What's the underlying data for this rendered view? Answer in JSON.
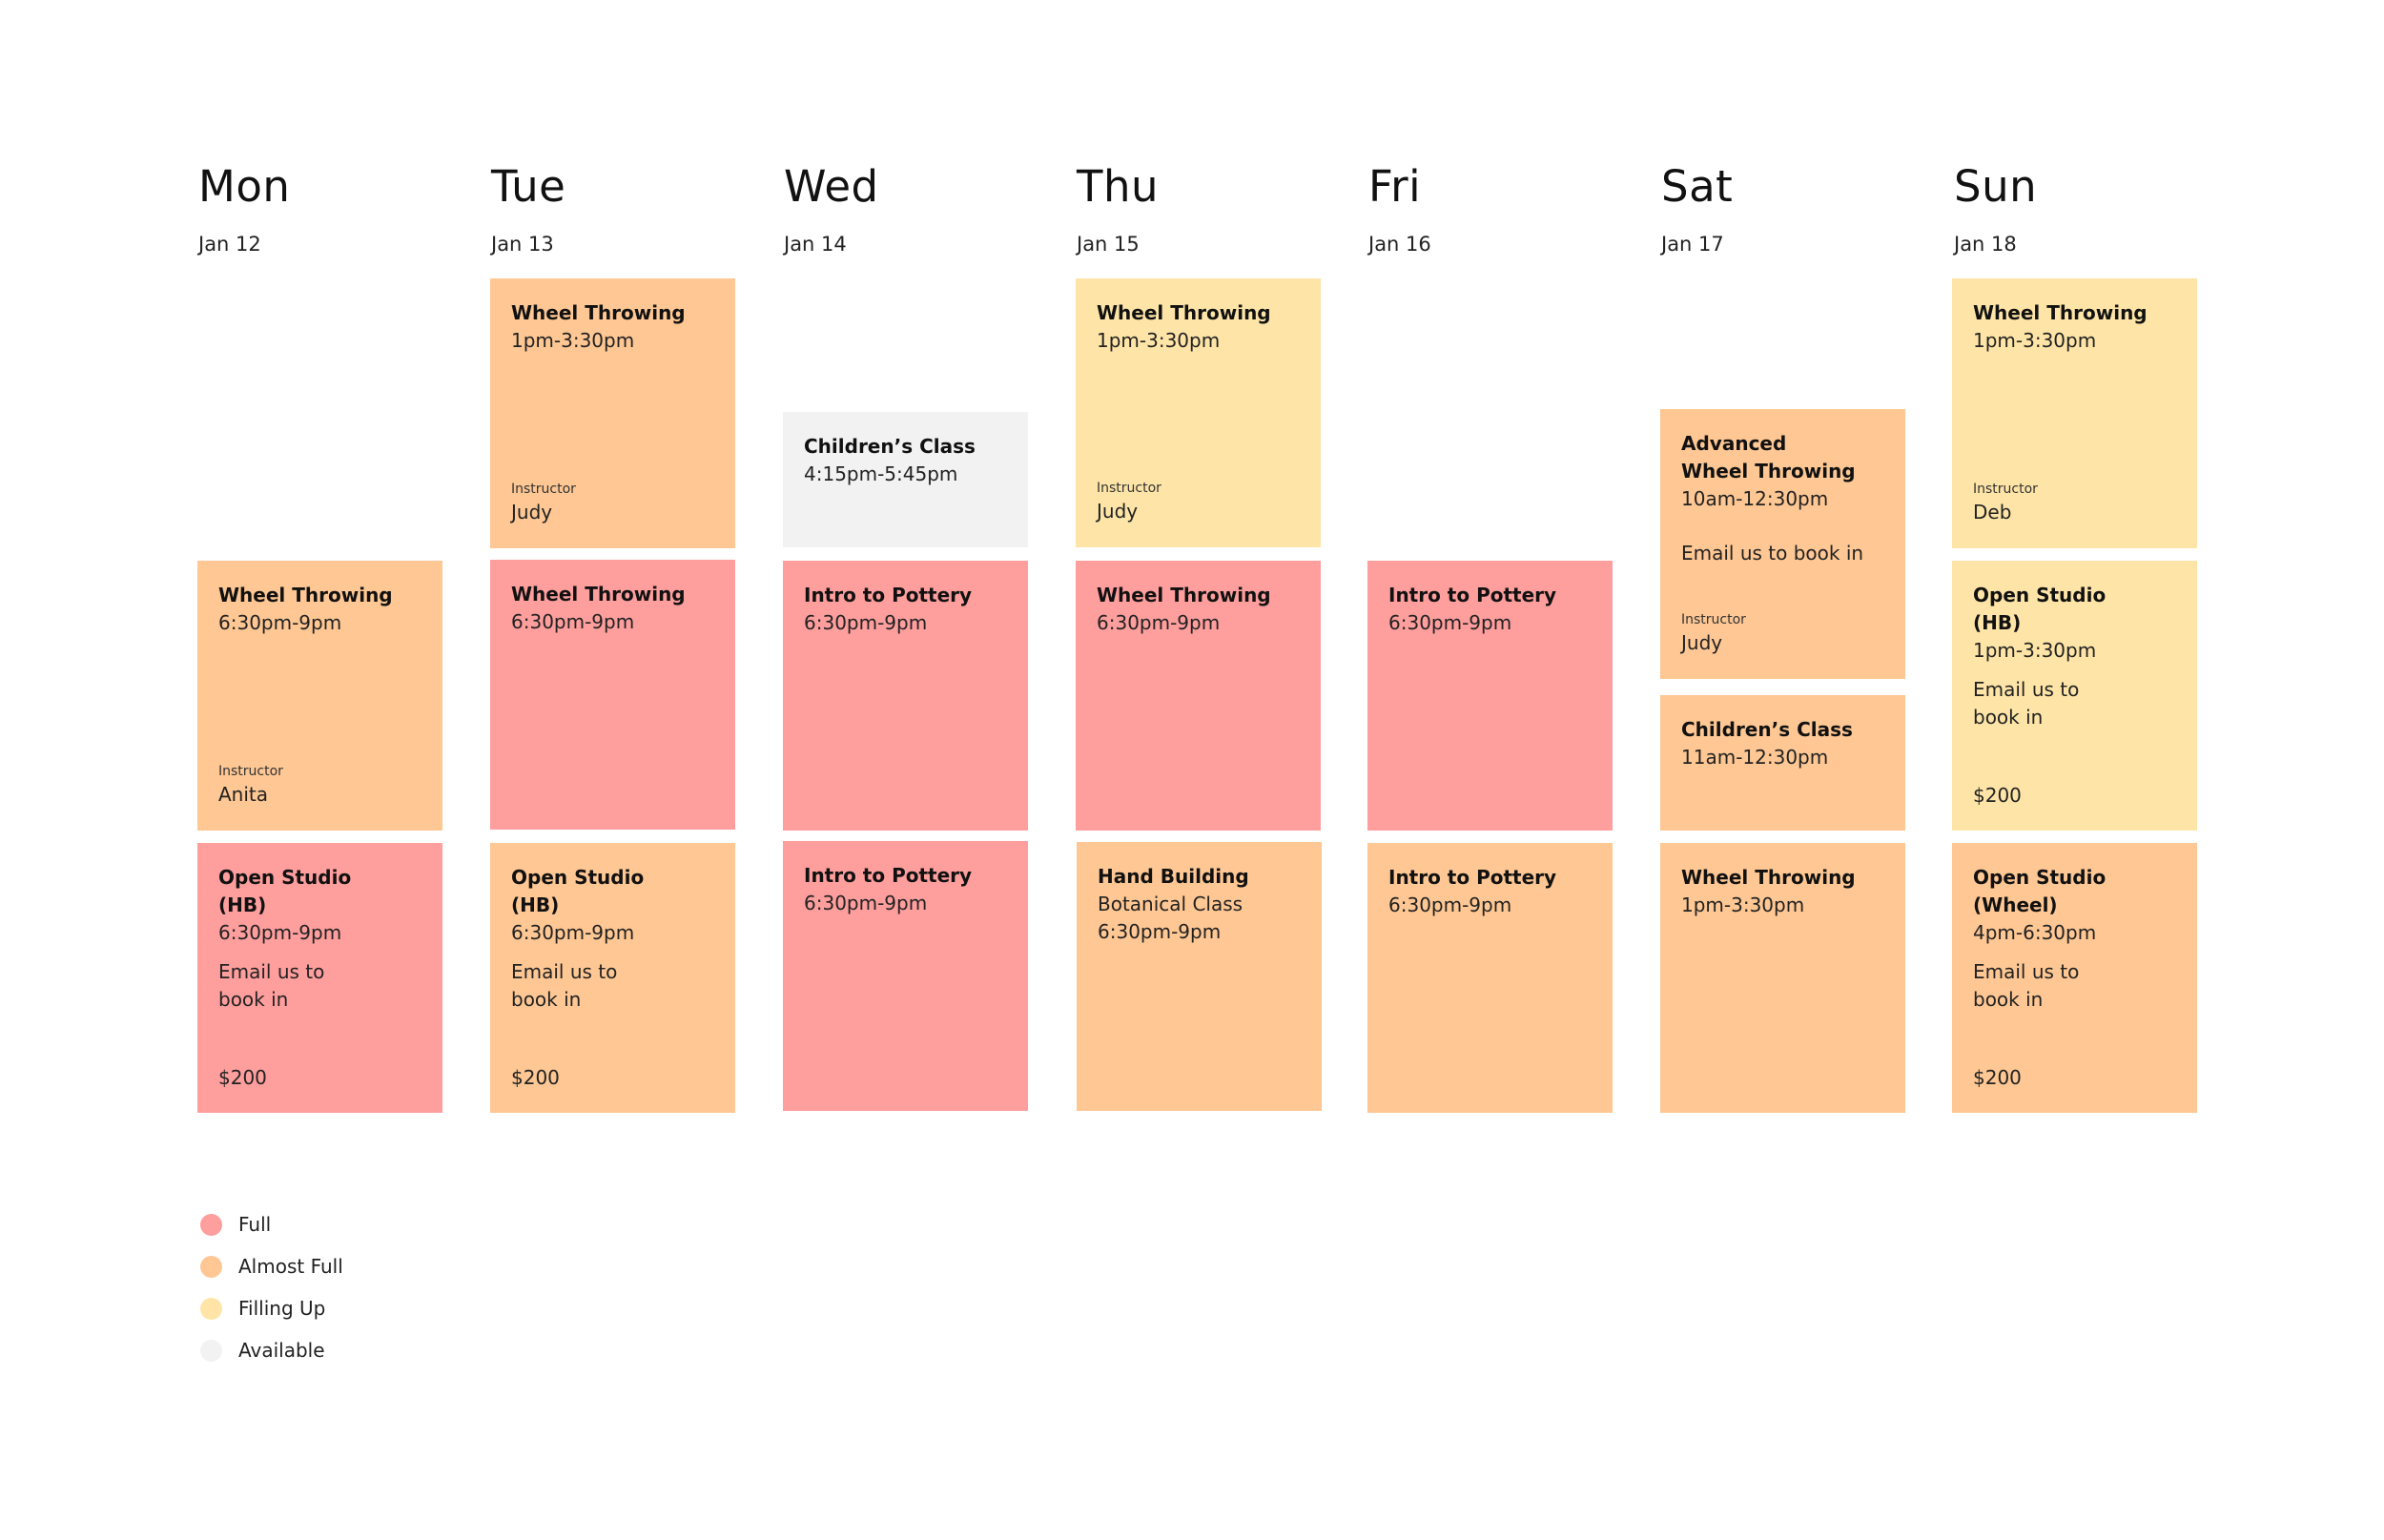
{
  "colors": {
    "full": "#FE9E9D",
    "almost_full": "#FEC793",
    "filling_up": "#FEE5A7",
    "available": "#F2F2F2"
  },
  "days": [
    {
      "name": "Mon",
      "date": "Jan 12"
    },
    {
      "name": "Tue",
      "date": "Jan 13"
    },
    {
      "name": "Wed",
      "date": "Jan 14"
    },
    {
      "name": "Thu",
      "date": "Jan 15"
    },
    {
      "name": "Fri",
      "date": "Jan 16"
    },
    {
      "name": "Sat",
      "date": "Jan 17"
    },
    {
      "name": "Sun",
      "date": "Jan 18"
    }
  ],
  "events": [
    {
      "day": "Mon",
      "status": "almost_full",
      "title": "Wheel Throwing",
      "time": "6:30pm-9pm",
      "instructor_label": "Instructor",
      "instructor": "Anita"
    },
    {
      "day": "Mon",
      "status": "full",
      "title": "Open Studio\n(HB)",
      "time": "6:30pm-9pm",
      "note": "Email us to\nbook in",
      "price": "$200"
    },
    {
      "day": "Tue",
      "status": "almost_full",
      "title": "Wheel Throwing",
      "time": "1pm-3:30pm",
      "instructor_label": "Instructor",
      "instructor": "Judy"
    },
    {
      "day": "Tue",
      "status": "full",
      "title": "Wheel Throwing",
      "time": "6:30pm-9pm"
    },
    {
      "day": "Tue",
      "status": "almost_full",
      "title": "Open Studio\n(HB)",
      "time": "6:30pm-9pm",
      "note": "Email us to\nbook in",
      "price": "$200"
    },
    {
      "day": "Wed",
      "status": "available",
      "title": "Children’s Class",
      "time": "4:15pm-5:45pm"
    },
    {
      "day": "Wed",
      "status": "full",
      "title": "Intro to Pottery",
      "time": "6:30pm-9pm"
    },
    {
      "day": "Wed",
      "status": "full",
      "title": "Intro to Pottery",
      "time": "6:30pm-9pm"
    },
    {
      "day": "Thu",
      "status": "filling_up",
      "title": "Wheel Throwing",
      "time": "1pm-3:30pm",
      "instructor_label": "Instructor",
      "instructor": "Judy"
    },
    {
      "day": "Thu",
      "status": "full",
      "title": "Wheel Throwing",
      "time": "6:30pm-9pm"
    },
    {
      "day": "Thu",
      "status": "almost_full",
      "title": "Hand Building",
      "subtitle": "Botanical Class",
      "time": "6:30pm-9pm"
    },
    {
      "day": "Fri",
      "status": "full",
      "title": "Intro to Pottery",
      "time": "6:30pm-9pm"
    },
    {
      "day": "Fri",
      "status": "almost_full",
      "title": "Intro to Pottery",
      "time": "6:30pm-9pm"
    },
    {
      "day": "Sat",
      "status": "almost_full",
      "title": "Advanced\nWheel Throwing",
      "time": "10am-12:30pm",
      "note": "Email us to book in",
      "instructor_label": "Instructor",
      "instructor": "Judy"
    },
    {
      "day": "Sat",
      "status": "almost_full",
      "title": "Children’s Class",
      "time": "11am-12:30pm"
    },
    {
      "day": "Sat",
      "status": "almost_full",
      "title": "Wheel Throwing",
      "time": "1pm-3:30pm"
    },
    {
      "day": "Sun",
      "status": "filling_up",
      "title": "Wheel Throwing",
      "time": "1pm-3:30pm",
      "instructor_label": "Instructor",
      "instructor": "Deb"
    },
    {
      "day": "Sun",
      "status": "filling_up",
      "title": "Open Studio\n(HB)",
      "time": "1pm-3:30pm",
      "note": "Email us to\nbook in",
      "price": "$200"
    },
    {
      "day": "Sun",
      "status": "almost_full",
      "title": "Open Studio\n(Wheel)",
      "time": "4pm-6:30pm",
      "note": "Email us to\nbook in",
      "price": "$200"
    }
  ],
  "legend": [
    {
      "status": "full",
      "label": "Full"
    },
    {
      "status": "almost_full",
      "label": "Almost Full"
    },
    {
      "status": "filling_up",
      "label": "Filling Up"
    },
    {
      "status": "available",
      "label": "Available"
    }
  ]
}
